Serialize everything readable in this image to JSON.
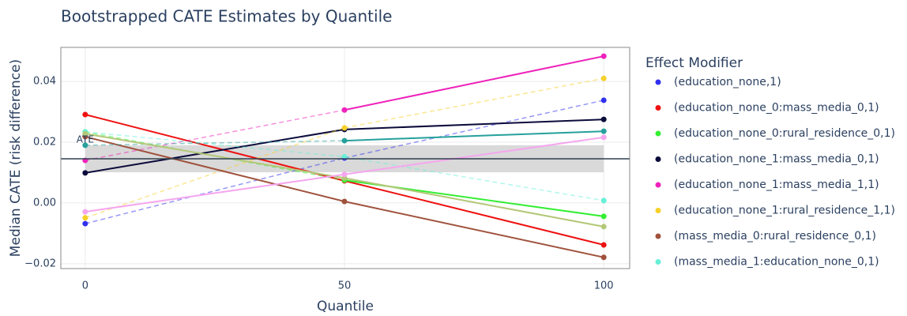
{
  "chart_data": {
    "type": "line",
    "title": "Bootstrapped CATE Estimates by Quantile",
    "x_label": "Quantile",
    "y_label": "Median CATE (risk difference)",
    "legend_title": "Effect Modifier",
    "x": [
      0,
      50,
      100
    ],
    "xlim": [
      -4.7,
      105
    ],
    "xticks": [
      0,
      50,
      100
    ],
    "ylim": [
      -0.0216,
      0.0512
    ],
    "yticks": [
      {
        "value": -0.02,
        "label": "−0.02"
      },
      {
        "value": 0,
        "label": "0.00"
      },
      0.02,
      0.04
    ],
    "grid": true,
    "ate": {
      "label": "ATE",
      "value": 0.01455,
      "ci": [
        0.0101,
        0.019
      ]
    },
    "series": [
      {
        "name": "(education_none,1)",
        "color": "#3030f0",
        "values": [
          -0.0068,
          0.0148,
          0.0338
        ],
        "dash": [
          true,
          true
        ]
      },
      {
        "name": "(education_none_0:mass_media_0,1)",
        "color": "#ee1111",
        "values": [
          0.0291,
          0.0073,
          -0.0138
        ],
        "dash": [
          false,
          false
        ]
      },
      {
        "name": "(education_none_0:rural_residence_0,1)",
        "color": "#33ee33",
        "values": [
          0.0234,
          0.0075,
          -0.0044
        ],
        "dash": [
          true,
          false
        ]
      },
      {
        "name": "(education_none_1:mass_media_0,1)",
        "color": "#0b0b3b",
        "values": [
          0.0099,
          0.0242,
          0.0275
        ],
        "dash": [
          false,
          false
        ]
      },
      {
        "name": "(education_none_1:mass_media_1,1)",
        "color": "#ee22bb",
        "values": [
          0.014,
          0.0306,
          0.0483
        ],
        "dash": [
          true,
          false
        ]
      },
      {
        "name": "(education_none_1:rural_residence_1,1)",
        "color": "#f7d02a",
        "values": [
          -0.0049,
          0.0247,
          0.041
        ],
        "dash": [
          true,
          true
        ]
      },
      {
        "name": "(mass_media_0:rural_residence_0,1)",
        "color": "#a0523d",
        "values": [
          0.0218,
          0.0005,
          -0.0179
        ],
        "dash": [
          false,
          false
        ]
      },
      {
        "name": "(mass_media_1:education_none_0,1)",
        "color": "#66f0d8",
        "values": [
          0.0234,
          0.0152,
          0.0008
        ],
        "dash": [
          true,
          true
        ]
      },
      {
        "color": "#26a09c",
        "values": [
          0.019,
          0.0205,
          0.0236
        ],
        "dash": [
          true,
          false
        ]
      },
      {
        "color": "#b3c878",
        "values": [
          0.0228,
          0.0082,
          -0.0078
        ],
        "dash": [
          false,
          false
        ]
      },
      {
        "color": "#f5a6ef",
        "values": [
          -0.0029,
          0.0094,
          0.0216
        ],
        "dash": [
          false,
          false
        ]
      }
    ]
  }
}
